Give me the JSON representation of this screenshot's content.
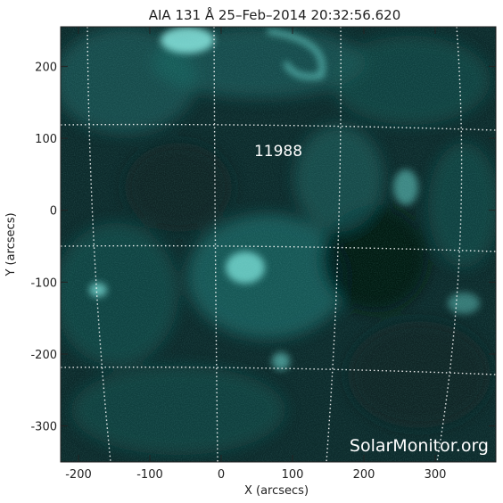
{
  "title": "AIA 131 Å 25–Feb–2014 20:32:56.620",
  "image": {
    "description_channel": "AIA 131",
    "colors": {
      "base": "#0c2a2b",
      "mid": "#1f6e6c",
      "bright": "#7fe6de",
      "dark": "#04100f",
      "grid": "#ffffff"
    }
  },
  "region_label": "11988",
  "watermark": "SolarMonitor.org",
  "axes": {
    "x": {
      "label": "X (arcsecs)",
      "range": [
        -225,
        385
      ],
      "ticks": [
        -200,
        -100,
        0,
        100,
        200,
        300
      ]
    },
    "y": {
      "label": "Y (arcsecs)",
      "range": [
        -350,
        255
      ],
      "ticks": [
        -300,
        -200,
        -100,
        0,
        100,
        200
      ]
    }
  }
}
